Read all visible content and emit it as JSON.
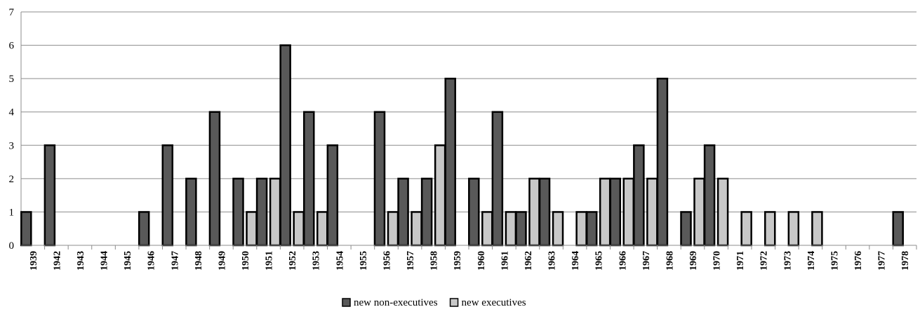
{
  "chart_data": {
    "type": "bar",
    "categories": [
      "1939",
      "1942",
      "1943",
      "1944",
      "1945",
      "1946",
      "1947",
      "1948",
      "1949",
      "1950",
      "1951",
      "1952",
      "1953",
      "1954",
      "1955",
      "1956",
      "1957",
      "1958",
      "1959",
      "1960",
      "1961",
      "1962",
      "1963",
      "1964",
      "1965",
      "1966",
      "1967",
      "1968",
      "1969",
      "1970",
      "1971",
      "1972",
      "1973",
      "1974",
      "1975",
      "1976",
      "1977",
      "1978"
    ],
    "series": [
      {
        "name": "new non-executives",
        "color": "#595959",
        "values": [
          1,
          3,
          0,
          0,
          0,
          1,
          3,
          2,
          4,
          2,
          2,
          6,
          4,
          3,
          0,
          4,
          2,
          2,
          5,
          2,
          4,
          1,
          2,
          0,
          1,
          2,
          3,
          5,
          1,
          3,
          0,
          0,
          0,
          0,
          0,
          0,
          0,
          1
        ]
      },
      {
        "name": "new executives",
        "color": "#c8c8c8",
        "values": [
          0,
          0,
          0,
          0,
          0,
          0,
          0,
          0,
          0,
          1,
          2,
          1,
          1,
          0,
          0,
          1,
          1,
          3,
          0,
          1,
          1,
          2,
          1,
          1,
          2,
          2,
          2,
          0,
          2,
          2,
          1,
          1,
          1,
          1,
          0,
          0,
          0,
          0
        ]
      }
    ],
    "yticks": [
      "0",
      "1",
      "2",
      "3",
      "4",
      "5",
      "6",
      "7"
    ],
    "ylim": [
      0,
      7
    ],
    "grid": true,
    "legend_position": "bottom-center",
    "title": "",
    "xlabel": "",
    "ylabel": ""
  }
}
